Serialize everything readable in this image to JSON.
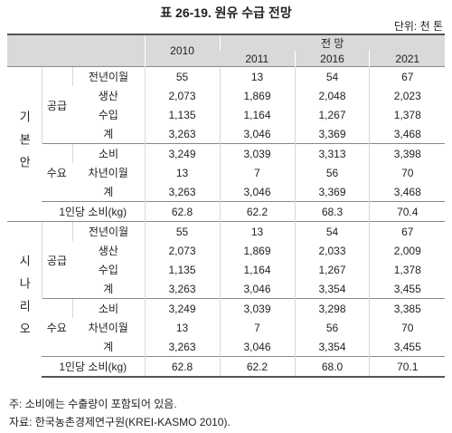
{
  "header": {
    "title": "표 26-19.  원유 수급 전망",
    "unit": "단위: 천 톤"
  },
  "table": {
    "base_year": "2010",
    "forecast": "전 망",
    "years": [
      "2011",
      "2016",
      "2021"
    ],
    "sections": [
      {
        "label": "기본안",
        "groups": [
          {
            "label": "공급",
            "rows": [
              {
                "item": "전년이월",
                "values": [
                  "55",
                  "13",
                  "54",
                  "67"
                ]
              },
              {
                "item": "생산",
                "values": [
                  "2,073",
                  "1,869",
                  "2,048",
                  "2,023"
                ]
              },
              {
                "item": "수입",
                "values": [
                  "1,135",
                  "1,164",
                  "1,267",
                  "1,378"
                ]
              },
              {
                "item": "계",
                "values": [
                  "3,263",
                  "3,046",
                  "3,369",
                  "3,468"
                ]
              }
            ]
          },
          {
            "label": "수요",
            "rows": [
              {
                "item": "소비",
                "values": [
                  "3,249",
                  "3,039",
                  "3,313",
                  "3,398"
                ]
              },
              {
                "item": "차년이월",
                "values": [
                  "13",
                  "7",
                  "56",
                  "70"
                ]
              },
              {
                "item": "계",
                "values": [
                  "3,263",
                  "3,046",
                  "3,369",
                  "3,468"
                ]
              }
            ]
          }
        ],
        "per_capita": {
          "label": "1인당 소비(kg)",
          "values": [
            "62.8",
            "62.2",
            "68.3",
            "70.4"
          ]
        }
      },
      {
        "label": "시나리오",
        "groups": [
          {
            "label": "공급",
            "rows": [
              {
                "item": "전년이월",
                "values": [
                  "55",
                  "13",
                  "54",
                  "67"
                ]
              },
              {
                "item": "생산",
                "values": [
                  "2,073",
                  "1,869",
                  "2,033",
                  "2,009"
                ]
              },
              {
                "item": "수입",
                "values": [
                  "1,135",
                  "1,164",
                  "1,267",
                  "1,378"
                ]
              },
              {
                "item": "계",
                "values": [
                  "3,263",
                  "3,046",
                  "3,354",
                  "3,455"
                ]
              }
            ]
          },
          {
            "label": "수요",
            "rows": [
              {
                "item": "소비",
                "values": [
                  "3,249",
                  "3,039",
                  "3,298",
                  "3,385"
                ]
              },
              {
                "item": "차년이월",
                "values": [
                  "13",
                  "7",
                  "56",
                  "70"
                ]
              },
              {
                "item": "계",
                "values": [
                  "3,263",
                  "3,046",
                  "3,354",
                  "3,455"
                ]
              }
            ]
          }
        ],
        "per_capita": {
          "label": "1인당 소비(kg)",
          "values": [
            "62.8",
            "62.2",
            "68.0",
            "70.1"
          ]
        }
      }
    ]
  },
  "notes": [
    "주: 소비에는 수출량이 포함되어 있음.",
    "자료: 한국농촌경제연구원(KREI-KASMO 2010)."
  ]
}
